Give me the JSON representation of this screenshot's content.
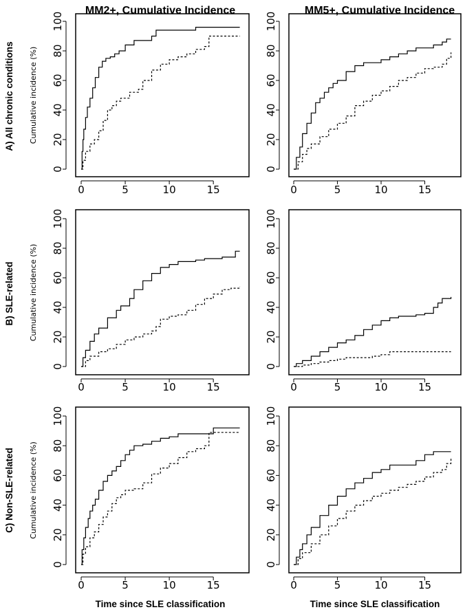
{
  "figure": {
    "column_titles": [
      "MM2+, Cumulative Incidence",
      "MM5+, Cumulative Incidence"
    ],
    "row_labels": [
      "A) All chronic conditions",
      "B) SLE-related",
      "C) Non-SLE-related"
    ],
    "x_axis_label": "Time since SLE classification",
    "y_axis_label": "Cumulative incidence (%)"
  },
  "chart_data": [
    {
      "type": "line",
      "row": 0,
      "col": 0,
      "step": true,
      "title": "MM2+, Cumulative Incidence",
      "row_label": "A) All chronic conditions",
      "xlabel": "",
      "ylabel": "Cumulative incidence (%)",
      "xlim": [
        0,
        18.5
      ],
      "ylim": [
        0,
        100
      ],
      "xticks": [
        0,
        5,
        10,
        15
      ],
      "yticks": [
        0,
        20,
        40,
        60,
        80,
        100
      ],
      "series": [
        {
          "style": "solid",
          "x": [
            0,
            0.1,
            0.2,
            0.3,
            0.5,
            0.7,
            1.0,
            1.3,
            1.6,
            2.0,
            2.4,
            2.8,
            3.3,
            3.8,
            4.3,
            5.0,
            6.0,
            7.0,
            8.0,
            8.5,
            10,
            12,
            13,
            18
          ],
          "y": [
            0,
            12,
            20,
            27,
            35,
            42,
            48,
            55,
            62,
            69,
            73,
            75,
            76,
            78,
            80,
            84,
            87,
            87,
            90,
            94,
            94,
            94,
            96,
            96
          ]
        },
        {
          "style": "dashed",
          "x": [
            0,
            0.2,
            0.5,
            1.0,
            1.5,
            2.0,
            2.5,
            3.0,
            3.5,
            4.0,
            4.5,
            5.5,
            6.5,
            7.0,
            8.0,
            9.0,
            10.0,
            11.0,
            12.0,
            13.0,
            14.0,
            14.5,
            18
          ],
          "y": [
            0,
            6,
            12,
            17,
            20,
            26,
            33,
            40,
            43,
            46,
            48,
            52,
            54,
            60,
            67,
            71,
            74,
            76,
            78,
            81,
            83,
            90,
            90
          ]
        }
      ]
    },
    {
      "type": "line",
      "row": 0,
      "col": 1,
      "step": true,
      "title": "MM5+, Cumulative Incidence",
      "row_label": "A) All chronic conditions",
      "xlabel": "",
      "ylabel": "",
      "xlim": [
        0,
        18.5
      ],
      "ylim": [
        0,
        100
      ],
      "xticks": [
        0,
        5,
        10,
        15
      ],
      "yticks": [
        0,
        20,
        40,
        60,
        80,
        100
      ],
      "series": [
        {
          "style": "solid",
          "x": [
            0,
            0.3,
            0.7,
            1.0,
            1.5,
            2.0,
            2.5,
            3.0,
            3.5,
            4.0,
            4.5,
            5.0,
            6.0,
            7.0,
            8.0,
            10.0,
            11.0,
            12.0,
            13.0,
            14.0,
            15.0,
            16.0,
            17.0,
            17.5,
            18
          ],
          "y": [
            0,
            8,
            15,
            24,
            31,
            38,
            45,
            48,
            52,
            55,
            58,
            60,
            66,
            70,
            72,
            74,
            76,
            78,
            80,
            82,
            82,
            84,
            86,
            88,
            88
          ]
        },
        {
          "style": "dashed",
          "x": [
            0,
            0.5,
            1.0,
            1.5,
            2.0,
            3.0,
            4.0,
            5.0,
            6.0,
            7.0,
            8.0,
            9.0,
            10.0,
            11.0,
            12.0,
            13.0,
            14.0,
            15.0,
            16.0,
            17.0,
            17.5,
            18
          ],
          "y": [
            0,
            5,
            10,
            14,
            17,
            22,
            27,
            31,
            36,
            43,
            46,
            50,
            53,
            56,
            60,
            62,
            65,
            68,
            69,
            71,
            75,
            79
          ]
        }
      ]
    },
    {
      "type": "line",
      "row": 1,
      "col": 0,
      "step": true,
      "title": "",
      "row_label": "B) SLE-related",
      "xlabel": "",
      "ylabel": "Cumulative incidence (%)",
      "xlim": [
        0,
        18.5
      ],
      "ylim": [
        0,
        100
      ],
      "xticks": [
        0,
        5,
        10,
        15
      ],
      "yticks": [
        0,
        20,
        40,
        60,
        80,
        100
      ],
      "series": [
        {
          "style": "solid",
          "x": [
            0,
            0.2,
            0.5,
            1.0,
            1.5,
            2.0,
            3.0,
            4.0,
            4.5,
            5.5,
            6.0,
            7.0,
            8.0,
            9.0,
            10.0,
            11.0,
            12.0,
            13.0,
            14.0,
            15.0,
            16.0,
            17.0,
            17.5,
            18
          ],
          "y": [
            0,
            6,
            11,
            17,
            22,
            26,
            33,
            38,
            41,
            46,
            52,
            58,
            63,
            67,
            69,
            71,
            71,
            72,
            73,
            73,
            74,
            74,
            78,
            78
          ]
        },
        {
          "style": "dashed",
          "x": [
            0,
            0.5,
            1.0,
            2.0,
            3.0,
            4.0,
            5.0,
            6.0,
            7.0,
            8.0,
            8.5,
            9.0,
            10.0,
            11.0,
            12.0,
            13.0,
            14.0,
            15.0,
            16.0,
            17.0,
            18
          ],
          "y": [
            0,
            4,
            7,
            10,
            12,
            15,
            18,
            20,
            22,
            24,
            27,
            32,
            34,
            35,
            38,
            42,
            46,
            49,
            52,
            53,
            54
          ]
        }
      ]
    },
    {
      "type": "line",
      "row": 1,
      "col": 1,
      "step": true,
      "title": "",
      "row_label": "B) SLE-related",
      "xlabel": "",
      "ylabel": "",
      "xlim": [
        0,
        18.5
      ],
      "ylim": [
        0,
        100
      ],
      "xticks": [
        0,
        5,
        10,
        15
      ],
      "yticks": [
        0,
        20,
        40,
        60,
        80,
        100
      ],
      "series": [
        {
          "style": "solid",
          "x": [
            0,
            0.3,
            1.0,
            2.0,
            3.0,
            4.0,
            5.0,
            6.0,
            7.0,
            8.0,
            9.0,
            10.0,
            11.0,
            12.0,
            13.0,
            14.0,
            15.0,
            16.0,
            16.5,
            17.0,
            18
          ],
          "y": [
            0,
            2,
            4,
            7,
            10,
            13,
            16,
            18,
            21,
            25,
            28,
            31,
            33,
            34,
            34,
            35,
            36,
            40,
            43,
            46,
            47
          ]
        },
        {
          "style": "dashed",
          "x": [
            0,
            1.0,
            2.0,
            3.0,
            4.0,
            5.0,
            6.0,
            8.0,
            9.0,
            10.0,
            11.0,
            18
          ],
          "y": [
            0,
            1,
            2,
            3,
            4,
            5,
            6,
            6,
            7,
            8,
            10,
            10
          ]
        }
      ]
    },
    {
      "type": "line",
      "row": 2,
      "col": 0,
      "step": true,
      "title": "",
      "row_label": "C) Non-SLE-related",
      "xlabel": "Time since SLE classification",
      "ylabel": "Cumulative incidence (%)",
      "xlim": [
        0,
        18.5
      ],
      "ylim": [
        0,
        100
      ],
      "xticks": [
        0,
        5,
        10,
        15
      ],
      "yticks": [
        0,
        20,
        40,
        60,
        80,
        100
      ],
      "series": [
        {
          "style": "solid",
          "x": [
            0,
            0.1,
            0.3,
            0.5,
            0.8,
            1.0,
            1.3,
            1.6,
            2.0,
            2.5,
            3.0,
            3.5,
            4.0,
            4.5,
            5.0,
            5.5,
            6.0,
            7.0,
            8.0,
            9.0,
            10.0,
            11.0,
            12.0,
            14.0,
            15.0,
            18
          ],
          "y": [
            0,
            10,
            18,
            25,
            31,
            36,
            40,
            44,
            50,
            56,
            60,
            63,
            66,
            70,
            74,
            77,
            80,
            81,
            83,
            85,
            86,
            88,
            88,
            88,
            92,
            92
          ]
        },
        {
          "style": "dashed",
          "x": [
            0,
            0.2,
            0.5,
            1.0,
            1.5,
            2.0,
            2.5,
            3.0,
            3.5,
            4.0,
            4.5,
            5.0,
            6.0,
            7.0,
            8.0,
            9.0,
            10.0,
            11.0,
            12.0,
            13.0,
            14.0,
            14.5,
            18
          ],
          "y": [
            0,
            7,
            12,
            18,
            22,
            27,
            32,
            36,
            41,
            45,
            47,
            50,
            51,
            55,
            61,
            65,
            68,
            72,
            76,
            78,
            80,
            89,
            89
          ]
        }
      ]
    },
    {
      "type": "line",
      "row": 2,
      "col": 1,
      "step": true,
      "title": "",
      "row_label": "C) Non-SLE-related",
      "xlabel": "Time since SLE classification",
      "ylabel": "",
      "xlim": [
        0,
        18.5
      ],
      "ylim": [
        0,
        100
      ],
      "xticks": [
        0,
        5,
        10,
        15
      ],
      "yticks": [
        0,
        20,
        40,
        60,
        80,
        100
      ],
      "series": [
        {
          "style": "solid",
          "x": [
            0,
            0.3,
            0.7,
            1.0,
            1.5,
            2.0,
            3.0,
            4.0,
            5.0,
            6.0,
            7.0,
            8.0,
            9.0,
            10.0,
            11.0,
            12.0,
            13.0,
            14.0,
            15.0,
            16.0,
            17.0,
            18
          ],
          "y": [
            0,
            5,
            10,
            14,
            20,
            25,
            33,
            40,
            46,
            51,
            55,
            58,
            62,
            64,
            67,
            67,
            67,
            70,
            74,
            76,
            76,
            76
          ]
        },
        {
          "style": "dashed",
          "x": [
            0,
            0.5,
            1.0,
            2.0,
            3.0,
            4.0,
            5.0,
            6.0,
            7.0,
            8.0,
            9.0,
            10.0,
            11.0,
            12.0,
            13.0,
            14.0,
            15.0,
            16.0,
            17.0,
            17.5,
            18
          ],
          "y": [
            0,
            4,
            8,
            14,
            20,
            26,
            31,
            36,
            40,
            43,
            46,
            48,
            50,
            52,
            54,
            56,
            59,
            62,
            64,
            68,
            72
          ]
        }
      ]
    }
  ]
}
